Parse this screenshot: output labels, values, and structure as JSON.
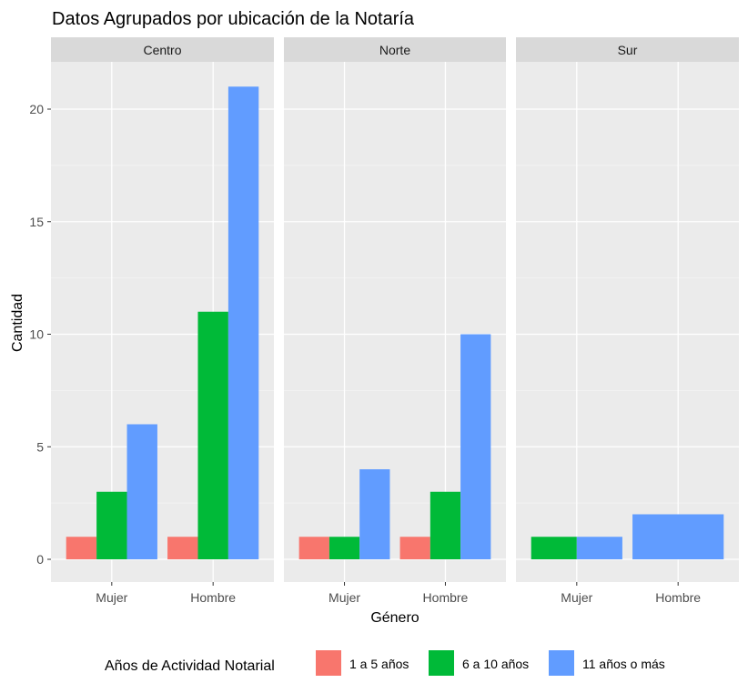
{
  "chart_data": {
    "type": "bar",
    "title": "Datos Agrupados por ubicación de la Notaría",
    "xlabel": "Género",
    "ylabel": "Cantidad",
    "ylim": [
      0,
      22.05
    ],
    "yticks": [
      0,
      5,
      10,
      15,
      20
    ],
    "legend": {
      "title": "Años de Actividad Notarial",
      "position": "bottom"
    },
    "series": [
      {
        "name": "1 a 5 años",
        "color": "#F8766D"
      },
      {
        "name": "6 a 10 años",
        "color": "#00BA38"
      },
      {
        "name": "11 años o más",
        "color": "#619CFF"
      }
    ],
    "facets": [
      {
        "name": "Centro",
        "categories": [
          "Mujer",
          "Hombre"
        ],
        "groups": [
          {
            "category": "Mujer",
            "bars": [
              {
                "series": "1 a 5 años",
                "value": 1
              },
              {
                "series": "6 a 10 años",
                "value": 3
              },
              {
                "series": "11 años o más",
                "value": 6
              }
            ]
          },
          {
            "category": "Hombre",
            "bars": [
              {
                "series": "1 a 5 años",
                "value": 1
              },
              {
                "series": "6 a 10 años",
                "value": 11
              },
              {
                "series": "11 años o más",
                "value": 21
              }
            ]
          }
        ]
      },
      {
        "name": "Norte",
        "categories": [
          "Mujer",
          "Hombre"
        ],
        "groups": [
          {
            "category": "Mujer",
            "bars": [
              {
                "series": "1 a 5 años",
                "value": 1
              },
              {
                "series": "6 a 10 años",
                "value": 1
              },
              {
                "series": "11 años o más",
                "value": 4
              }
            ]
          },
          {
            "category": "Hombre",
            "bars": [
              {
                "series": "1 a 5 años",
                "value": 1
              },
              {
                "series": "6 a 10 años",
                "value": 3
              },
              {
                "series": "11 años o más",
                "value": 10
              }
            ]
          }
        ]
      },
      {
        "name": "Sur",
        "categories": [
          "Mujer",
          "Hombre"
        ],
        "groups": [
          {
            "category": "Mujer",
            "bars": [
              {
                "series": "6 a 10 años",
                "value": 1
              },
              {
                "series": "11 años o más",
                "value": 1
              }
            ]
          },
          {
            "category": "Hombre",
            "bars": [
              {
                "series": "11 años o más",
                "value": 2
              }
            ]
          }
        ]
      }
    ]
  }
}
